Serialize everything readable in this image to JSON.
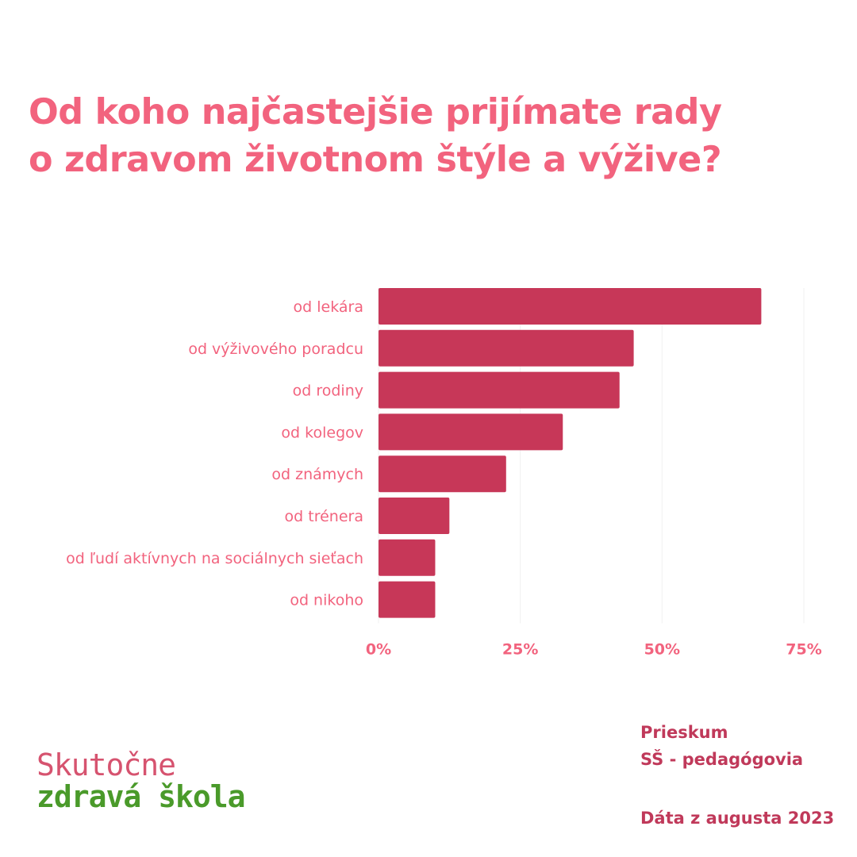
{
  "title": {
    "line1": "Od koho najčastejšie prijímate rady",
    "line2": "o zdravom životnom štýle a výžive?"
  },
  "colors": {
    "title": "#f2637e",
    "bar": "#c73758",
    "label": "#f2637e",
    "meta": "#c0395a",
    "logo_top": "#d6536f",
    "logo_bottom": "#4a9a2a"
  },
  "chart_data": {
    "type": "bar",
    "orientation": "horizontal",
    "categories": [
      "od lekára",
      "od výživového poradcu",
      "od rodiny",
      "od kolegov",
      "od známych",
      "od trénera",
      "od ľudí aktívnych na sociálnych sieťach",
      "od nikoho"
    ],
    "values": [
      67.5,
      45,
      42.5,
      32.5,
      22.5,
      12.5,
      10,
      10
    ],
    "xlim": [
      0,
      75
    ],
    "xticks": [
      0,
      25,
      50,
      75
    ],
    "xtick_labels": [
      "0%",
      "25%",
      "50%",
      "75%"
    ],
    "grid": true
  },
  "logo": {
    "line1": "Skutočne",
    "line2": "zdravá škola"
  },
  "meta": {
    "line1": "Prieskum",
    "line2": "SŠ - pedagógovia",
    "line3": "Dáta z augusta 2023"
  }
}
